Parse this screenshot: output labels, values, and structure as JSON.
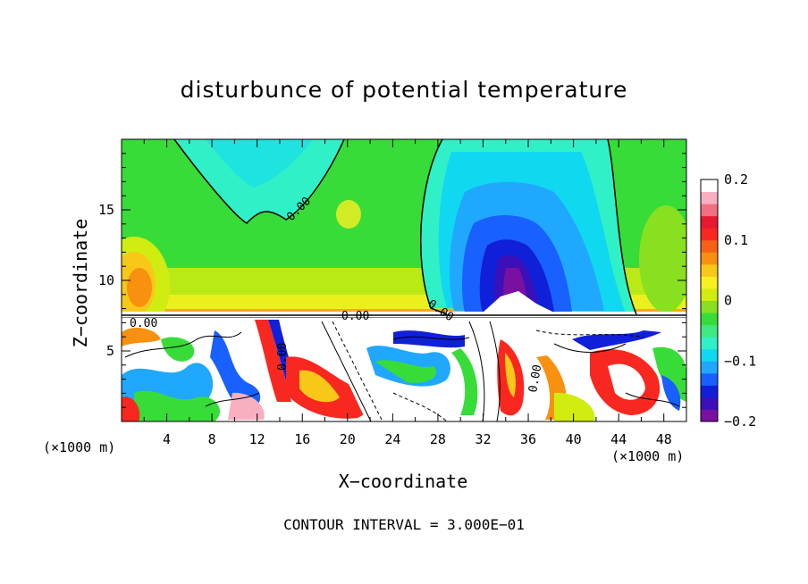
{
  "chart_data": {
    "type": "heatmap",
    "title": "disturbunce of potential temperature",
    "xlabel": "X−coordinate",
    "ylabel": "Z−coordinate",
    "x_unit_left": "(×1000 m)",
    "x_unit_right": "(×1000 m)",
    "xlim": [
      0,
      50
    ],
    "ylim": [
      0,
      20
    ],
    "x_ticks": [
      4,
      8,
      12,
      16,
      20,
      24,
      28,
      32,
      36,
      40,
      44,
      48
    ],
    "y_ticks": [
      5,
      10,
      15
    ],
    "colorbar": {
      "range": [
        -0.2,
        0.2
      ],
      "tick_values": [
        0.2,
        0.1,
        0,
        -0.1,
        -0.2
      ],
      "tick_labels": [
        "0.2",
        "0.1",
        "0",
        "−0.1",
        "−0.2"
      ],
      "colors": [
        "#7a10a0",
        "#3b10b8",
        "#1020d8",
        "#1860ff",
        "#20a8ff",
        "#10d8f0",
        "#30f0c8",
        "#40e880",
        "#38dc38",
        "#88e020",
        "#d0ec10",
        "#f8f020",
        "#f8c818",
        "#f89010",
        "#f86018",
        "#f82820",
        "#e81830",
        "#f07080",
        "#f8b0c0",
        "#ffffff"
      ]
    },
    "contour_labels": [
      "0.00",
      "0.00",
      "0.00",
      "0.00",
      "0.00",
      "0.00"
    ],
    "contour_interval": "CONTOUR INTERVAL = 3.000E−01"
  }
}
